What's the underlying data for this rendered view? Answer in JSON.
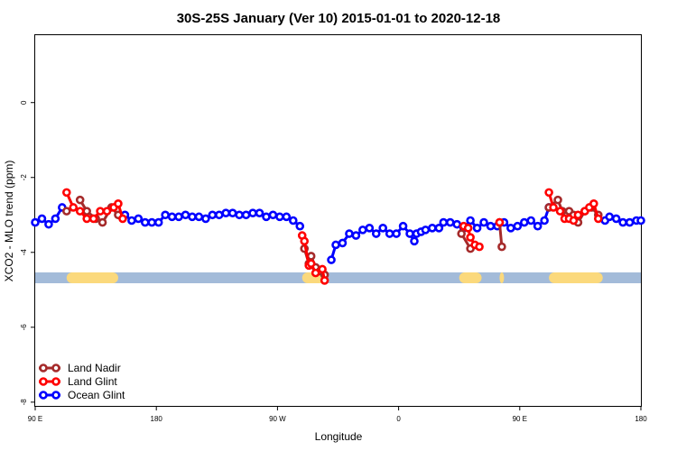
{
  "chart_data": {
    "type": "line",
    "title": "30S-25S January (Ver 10)   2015-01-01 to 2020-12-18",
    "xlabel": "Longitude",
    "ylabel": "XCO2 - MLO trend (ppm)",
    "xlim": [
      -90,
      180
    ],
    "ylim": [
      -8.1,
      1.8
    ],
    "x_ticks": [
      {
        "value": -90,
        "label": "90 E"
      },
      {
        "value": -36,
        "label": "180"
      },
      {
        "value": 18,
        "label": "90 W"
      },
      {
        "value": 72,
        "label": "0"
      },
      {
        "value": 126,
        "label": "90 E"
      },
      {
        "value": 180,
        "label": "180"
      }
    ],
    "y_ticks": [
      {
        "value": 0,
        "label": "0"
      },
      {
        "value": -2,
        "label": "-2"
      },
      {
        "value": -4,
        "label": "-4"
      },
      {
        "value": -6,
        "label": "-6"
      },
      {
        "value": -8,
        "label": "-8"
      }
    ],
    "land_band": {
      "y": -4.68,
      "ocean_color": "#a3bbd9",
      "land_color": "#fbd97c",
      "land_segments": [
        [
          -76,
          -53
        ],
        [
          29,
          40
        ],
        [
          99,
          109
        ],
        [
          117,
          119
        ],
        [
          139,
          163
        ]
      ]
    },
    "legend_position": "bottom-left",
    "series": [
      {
        "name": "Land Nadir",
        "color": "#a52a2a",
        "points": [
          [
            -76,
            -2.9
          ],
          [
            -70,
            -2.6
          ],
          [
            -67,
            -2.9
          ],
          [
            -63,
            -3.1
          ],
          [
            -60,
            -3.2
          ],
          [
            -56,
            -2.8
          ],
          [
            -53,
            -3.0
          ],
          [
            30,
            -3.9
          ],
          [
            32,
            -4.3
          ],
          [
            33,
            -4.1
          ],
          [
            35,
            -4.4
          ],
          [
            37,
            -4.5
          ],
          [
            39,
            -4.6
          ],
          [
            100,
            -3.5
          ],
          [
            104,
            -3.9
          ],
          [
            117,
            -3.2
          ],
          [
            118,
            -3.85
          ],
          [
            139,
            -2.8
          ],
          [
            143,
            -2.6
          ],
          [
            145,
            -2.9
          ],
          [
            148,
            -2.9
          ],
          [
            150,
            -3.0
          ],
          [
            152,
            -3.2
          ],
          [
            155,
            -2.9
          ],
          [
            158,
            -2.8
          ],
          [
            161,
            -3.0
          ]
        ]
      },
      {
        "name": "Land Glint",
        "color": "#ff0000",
        "points": [
          [
            -76,
            -2.4
          ],
          [
            -73,
            -2.8
          ],
          [
            -70,
            -2.9
          ],
          [
            -67,
            -3.1
          ],
          [
            -64,
            -3.1
          ],
          [
            -61,
            -2.9
          ],
          [
            -58,
            -2.9
          ],
          [
            -55,
            -2.8
          ],
          [
            -53,
            -2.7
          ],
          [
            -51,
            -3.1
          ],
          [
            29,
            -3.55
          ],
          [
            30,
            -3.7
          ],
          [
            32,
            -4.35
          ],
          [
            33,
            -4.3
          ],
          [
            35,
            -4.55
          ],
          [
            38,
            -4.45
          ],
          [
            39,
            -4.75
          ],
          [
            101,
            -3.3
          ],
          [
            103,
            -3.35
          ],
          [
            104,
            -3.6
          ],
          [
            106,
            -3.8
          ],
          [
            108,
            -3.85
          ],
          [
            117,
            -3.2
          ],
          [
            139,
            -2.4
          ],
          [
            141,
            -2.8
          ],
          [
            144,
            -2.9
          ],
          [
            146,
            -3.1
          ],
          [
            148,
            -3.1
          ],
          [
            150,
            -3.15
          ],
          [
            152,
            -3.0
          ],
          [
            155,
            -2.9
          ],
          [
            157,
            -2.8
          ],
          [
            159,
            -2.7
          ],
          [
            161,
            -3.1
          ]
        ]
      },
      {
        "name": "Ocean Glint",
        "color": "#0000ff",
        "points": [
          [
            -90,
            -3.2
          ],
          [
            -87,
            -3.1
          ],
          [
            -84,
            -3.25
          ],
          [
            -81,
            -3.1
          ],
          [
            -78,
            -2.8
          ],
          [
            -50,
            -3.0
          ],
          [
            -47,
            -3.15
          ],
          [
            -44,
            -3.1
          ],
          [
            -41,
            -3.2
          ],
          [
            -38,
            -3.2
          ],
          [
            -35,
            -3.2
          ],
          [
            -32,
            -3.0
          ],
          [
            -29,
            -3.05
          ],
          [
            -26,
            -3.05
          ],
          [
            -23,
            -3.0
          ],
          [
            -20,
            -3.05
          ],
          [
            -17,
            -3.05
          ],
          [
            -14,
            -3.1
          ],
          [
            -11,
            -3.0
          ],
          [
            -8,
            -3.0
          ],
          [
            -5,
            -2.95
          ],
          [
            -2,
            -2.95
          ],
          [
            1,
            -3.0
          ],
          [
            4,
            -3.0
          ],
          [
            7,
            -2.95
          ],
          [
            10,
            -2.95
          ],
          [
            13,
            -3.05
          ],
          [
            16,
            -3.0
          ],
          [
            19,
            -3.05
          ],
          [
            22,
            -3.05
          ],
          [
            25,
            -3.15
          ],
          [
            28,
            -3.3
          ],
          [
            42,
            -4.2
          ],
          [
            44,
            -3.8
          ],
          [
            47,
            -3.75
          ],
          [
            50,
            -3.5
          ],
          [
            53,
            -3.55
          ],
          [
            56,
            -3.4
          ],
          [
            59,
            -3.35
          ],
          [
            62,
            -3.5
          ],
          [
            65,
            -3.35
          ],
          [
            68,
            -3.5
          ],
          [
            71,
            -3.5
          ],
          [
            74,
            -3.3
          ],
          [
            77,
            -3.5
          ],
          [
            79,
            -3.7
          ],
          [
            80,
            -3.5
          ],
          [
            82,
            -3.45
          ],
          [
            84,
            -3.4
          ],
          [
            87,
            -3.35
          ],
          [
            90,
            -3.35
          ],
          [
            92,
            -3.2
          ],
          [
            95,
            -3.2
          ],
          [
            98,
            -3.25
          ],
          [
            101,
            -3.35
          ],
          [
            104,
            -3.15
          ],
          [
            107,
            -3.35
          ],
          [
            110,
            -3.2
          ],
          [
            113,
            -3.3
          ],
          [
            116,
            -3.3
          ],
          [
            119,
            -3.2
          ],
          [
            122,
            -3.35
          ],
          [
            125,
            -3.3
          ],
          [
            128,
            -3.2
          ],
          [
            131,
            -3.15
          ],
          [
            134,
            -3.3
          ],
          [
            137,
            -3.15
          ],
          [
            139,
            -2.8
          ],
          [
            164,
            -3.15
          ],
          [
            166,
            -3.05
          ],
          [
            169,
            -3.1
          ],
          [
            172,
            -3.2
          ],
          [
            175,
            -3.2
          ],
          [
            178,
            -3.15
          ],
          [
            180,
            -3.15
          ]
        ]
      }
    ]
  }
}
